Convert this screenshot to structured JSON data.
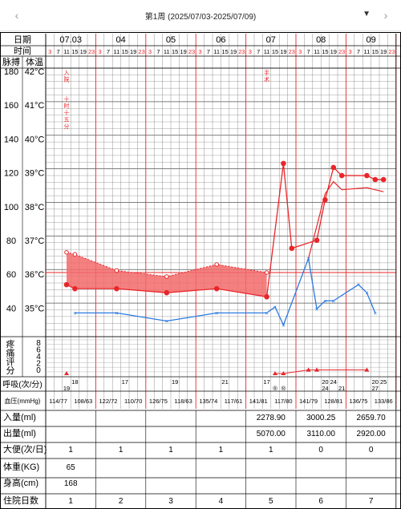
{
  "header": {
    "prev_icon": "chevron-left-icon",
    "next_icon": "chevron-right-icon",
    "title": "第1周 (2025/07/03-2025/07/09)",
    "dropdown_icon": "triangle-down-icon"
  },
  "labels": {
    "date": "日期",
    "time": "时间",
    "pulse": "脉搏",
    "temp": "体温",
    "pain": "疼痛评分",
    "resp": "呼吸(次/分)",
    "bp": "血压(mmHg)",
    "intake": "入量(ml)",
    "output": "出量(ml)",
    "stool": "大便(次/日)",
    "weight": "体重(KG)",
    "height": "身高(cm)",
    "days": "住院日数"
  },
  "dates": [
    "07.03",
    "04",
    "05",
    "06",
    "07",
    "08",
    "09"
  ],
  "hours": [
    "3",
    "7",
    "11",
    "15",
    "19",
    "23"
  ],
  "pulse_ticks": [
    "180",
    "160",
    "140",
    "120",
    "100",
    "80",
    "60",
    "40"
  ],
  "temp_ticks": [
    "42°C",
    "41°C",
    "40°C",
    "39°C",
    "38°C",
    "37°C",
    "36°C",
    "35°C"
  ],
  "pain_ticks": [
    "8",
    "6",
    "4",
    "2",
    "0"
  ],
  "annotations": [
    {
      "text": "入院",
      "slot": 2
    },
    {
      "text": "十时十五分",
      "slot": 2
    },
    {
      "text": "手术",
      "slot": 26
    }
  ],
  "chart_data": {
    "type": "line",
    "x_unit": "4-hour slots from 07.03 03:00",
    "temperature": [
      [
        2,
        36.7
      ],
      [
        3,
        36.6
      ],
      [
        8,
        36.6
      ],
      [
        14,
        36.5
      ],
      [
        20,
        36.6
      ],
      [
        26,
        36.4
      ],
      [
        28,
        39.7
      ],
      [
        29,
        37.6
      ],
      [
        32,
        37.8
      ],
      [
        33,
        38.8
      ],
      [
        34,
        39.6
      ],
      [
        35,
        39.4
      ],
      [
        38,
        39.4
      ],
      [
        39,
        39.3
      ],
      [
        40,
        39.3
      ]
    ],
    "pulse": [
      [
        3,
        60
      ],
      [
        8,
        60
      ],
      [
        14,
        56
      ],
      [
        20,
        60
      ],
      [
        26,
        60
      ],
      [
        27,
        63
      ],
      [
        28,
        54
      ],
      [
        31,
        87
      ],
      [
        32,
        62
      ],
      [
        33,
        66
      ],
      [
        34,
        66
      ],
      [
        37,
        74
      ],
      [
        38,
        70
      ],
      [
        39,
        60
      ]
    ],
    "pulse_upper": [
      [
        2,
        90
      ],
      [
        3,
        89
      ],
      [
        8,
        81
      ],
      [
        14,
        78
      ],
      [
        20,
        84
      ],
      [
        26,
        80
      ]
    ],
    "pulse_upper_b": [
      [
        31,
        87
      ],
      [
        33,
        119
      ],
      [
        34,
        125
      ],
      [
        35,
        121
      ],
      [
        38,
        122
      ],
      [
        39,
        121
      ],
      [
        40,
        120
      ]
    ],
    "pain": [
      [
        2,
        0
      ],
      [
        27,
        0
      ],
      [
        28,
        0
      ],
      [
        31,
        1
      ],
      [
        32,
        1
      ],
      [
        38,
        1
      ]
    ],
    "resp_top": [
      {
        "slot": 3,
        "v": "18"
      },
      {
        "slot": 26,
        "v": "17"
      },
      {
        "slot": 33,
        "v": "20"
      },
      {
        "slot": 39,
        "v": "20"
      }
    ],
    "resp_top2": [
      {
        "slot": 9,
        "v": "17"
      },
      {
        "slot": 15,
        "v": "19"
      },
      {
        "slot": 21,
        "v": "21"
      },
      {
        "slot": 34,
        "v": "24"
      },
      {
        "slot": 40,
        "v": "25"
      }
    ],
    "resp_bottom": [
      {
        "slot": 2,
        "v": "19"
      },
      {
        "slot": 27,
        "v": "®"
      },
      {
        "slot": 28,
        "v": "®"
      },
      {
        "slot": 33,
        "v": "24"
      },
      {
        "slot": 35,
        "v": "21"
      },
      {
        "slot": 39,
        "v": "27"
      }
    ],
    "bp": [
      "114/77",
      "108/63",
      "122/72",
      "110/70",
      "126/75",
      "118/63",
      "135/74",
      "117/61",
      "141/81",
      "117/80",
      "141/79",
      "128/81",
      "136/75",
      "133/86"
    ],
    "intake": [
      "",
      "",
      "",
      "",
      "2278.90",
      "3000.25",
      "2659.70"
    ],
    "output": [
      "",
      "",
      "",
      "",
      "5070.00",
      "3110.00",
      "2920.00"
    ],
    "stool": [
      "1",
      "1",
      "1",
      "1",
      "1",
      "0",
      "0"
    ],
    "weight": [
      "65",
      "",
      "",
      "",
      "",
      "",
      ""
    ],
    "height": [
      "168",
      "",
      "",
      "",
      "",
      "",
      ""
    ],
    "days": [
      "1",
      "2",
      "3",
      "4",
      "5",
      "6",
      "7"
    ]
  },
  "colors": {
    "red": "#e8262a",
    "blue": "#2a7ae2",
    "fill": "#f26a6a"
  }
}
